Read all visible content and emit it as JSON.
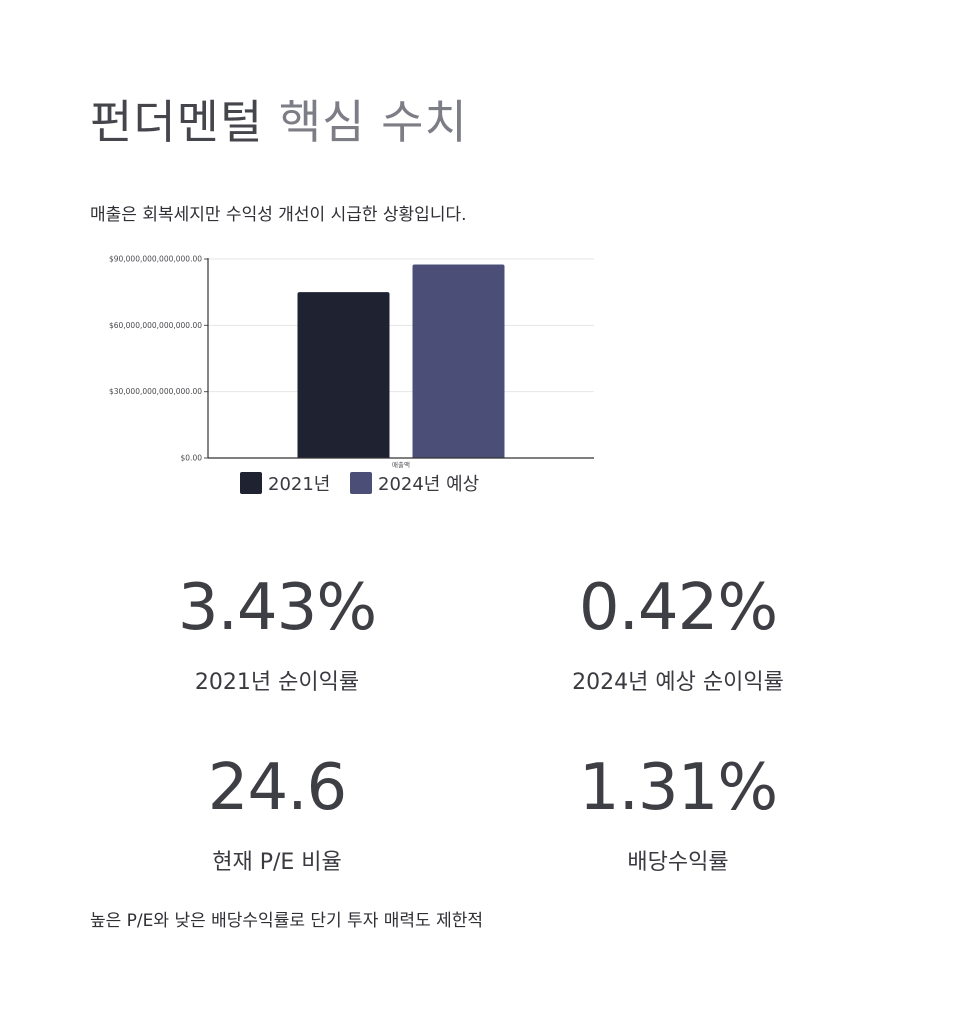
{
  "title_main": "펀더멘털",
  "title_accent": "핵심 수치",
  "subtitle": "매출은 회복세지만 수익성 개선이 시급한 상황입니다.",
  "chart_data": {
    "type": "bar",
    "categories": [
      "매출액"
    ],
    "series": [
      {
        "name": "2021년",
        "values": [
          75000000000000
        ],
        "color": "#1f2231"
      },
      {
        "name": "2024년 예상",
        "values": [
          87500000000000
        ],
        "color": "#4b4f78"
      }
    ],
    "yticks": [
      "$0.00",
      "$30,000,000,000,000.00",
      "$60,000,000,000,000.00",
      "$90,000,000,000,000.00"
    ],
    "ylim": [
      0,
      90000000000000
    ],
    "grid": true,
    "legend_position": "bottom"
  },
  "metrics": [
    {
      "value": "3.43%",
      "label": "2021년 순이익률"
    },
    {
      "value": "0.42%",
      "label": "2024년 예상 순이익률"
    },
    {
      "value": "24.6",
      "label": "현재 P/E 비율"
    },
    {
      "value": "1.31%",
      "label": "배당수익률"
    }
  ],
  "footnote": "높은 P/E와 낮은 배당수익률로 단기 투자 매력도 제한적"
}
